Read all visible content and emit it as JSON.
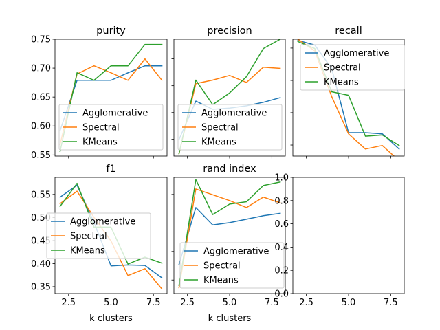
{
  "chart_data": [
    {
      "type": "line",
      "title": "purity",
      "xlabel": "",
      "x": [
        2,
        3,
        4,
        5,
        6,
        7,
        8
      ],
      "xlim": [
        1.7,
        8.3
      ],
      "ylim": [
        0.548,
        0.75
      ],
      "xticks": [
        2.5,
        5.0,
        7.5
      ],
      "xtick_labels": [
        "",
        "",
        ""
      ],
      "yticks": [
        0.55,
        0.6,
        0.65,
        0.7,
        0.75
      ],
      "ytick_labels": [
        "0.55",
        "0.60",
        "0.65",
        "0.70",
        "0.75"
      ],
      "legend": "lower-left",
      "series": [
        {
          "name": "Agglomerative",
          "color": "#1f77b4",
          "values": [
            0.592,
            0.679,
            0.679,
            0.679,
            0.692,
            0.704,
            0.704
          ]
        },
        {
          "name": "Spectral",
          "color": "#ff7f0e",
          "values": [
            0.568,
            0.69,
            0.704,
            0.692,
            0.679,
            0.716,
            0.679
          ]
        },
        {
          "name": "KMeans",
          "color": "#2ca02c",
          "values": [
            0.556,
            0.692,
            0.679,
            0.704,
            0.704,
            0.741,
            0.741
          ]
        }
      ]
    },
    {
      "type": "line",
      "title": "precision",
      "xlabel": "",
      "x": [
        2,
        3,
        4,
        5,
        6,
        7,
        8
      ],
      "xlim": [
        1.7,
        8.3
      ],
      "ylim": [
        0.0,
        1.0
      ],
      "xticks": [
        2.5,
        5.0,
        7.5
      ],
      "xtick_labels": [
        "",
        "",
        ""
      ],
      "yticks": [
        0.143,
        0.372,
        0.602,
        0.832
      ],
      "ytick_labels": [
        "",
        "",
        "",
        ""
      ],
      "legend": "lower-left",
      "series": [
        {
          "name": "Agglomerative",
          "color": "#1f77b4",
          "values": [
            0.14,
            0.47,
            0.4,
            0.41,
            0.43,
            0.46,
            0.5
          ]
        },
        {
          "name": "Spectral",
          "color": "#ff7f0e",
          "values": [
            0.02,
            0.62,
            0.65,
            0.69,
            0.63,
            0.76,
            0.75
          ]
        },
        {
          "name": "KMeans",
          "color": "#2ca02c",
          "values": [
            0.02,
            0.65,
            0.44,
            0.54,
            0.68,
            0.92,
            1.0
          ]
        }
      ]
    },
    {
      "type": "line",
      "title": "recall",
      "xlabel": "",
      "x": [
        2,
        3,
        4,
        5,
        6,
        7,
        8
      ],
      "xlim": [
        1.7,
        8.3
      ],
      "ylim": [
        0.0,
        1.0
      ],
      "xticks": [
        2.5,
        5.0,
        7.5
      ],
      "xtick_labels": [
        "",
        "",
        ""
      ],
      "yticks": [
        0.094,
        0.371,
        0.647,
        0.924
      ],
      "ytick_labels": [
        "",
        "",
        "",
        ""
      ],
      "legend": "upper-right",
      "series": [
        {
          "name": "Agglomerative",
          "color": "#1f77b4",
          "values": [
            0.99,
            0.95,
            0.75,
            0.2,
            0.2,
            0.19,
            0.06
          ]
        },
        {
          "name": "Spectral",
          "color": "#ff7f0e",
          "values": [
            1.0,
            0.9,
            0.51,
            0.19,
            0.06,
            0.09,
            -0.04
          ]
        },
        {
          "name": "KMeans",
          "color": "#2ca02c",
          "values": [
            0.98,
            0.92,
            0.55,
            0.52,
            0.17,
            0.18,
            0.09
          ]
        }
      ]
    },
    {
      "type": "line",
      "title": "f1",
      "xlabel": "k clusters",
      "x": [
        2,
        3,
        4,
        5,
        6,
        7,
        8
      ],
      "xlim": [
        1.7,
        8.3
      ],
      "ylim": [
        0.335,
        0.587
      ],
      "xticks": [
        2.5,
        5.0,
        7.5
      ],
      "xtick_labels": [
        "2.5",
        "5.0",
        "7.5"
      ],
      "yticks": [
        0.35,
        0.4,
        0.45,
        0.5,
        0.55
      ],
      "ytick_labels": [
        "0.35",
        "0.40",
        "0.45",
        "0.50",
        "0.55"
      ],
      "legend": "center-left",
      "series": [
        {
          "name": "Agglomerative",
          "color": "#1f77b4",
          "values": [
            0.544,
            0.57,
            0.489,
            0.395,
            0.397,
            0.396,
            0.369
          ]
        },
        {
          "name": "Spectral",
          "color": "#ff7f0e",
          "values": [
            0.53,
            0.557,
            0.5,
            0.449,
            0.374,
            0.389,
            0.345
          ]
        },
        {
          "name": "KMeans",
          "color": "#2ca02c",
          "values": [
            0.524,
            0.574,
            0.479,
            0.479,
            0.399,
            0.414,
            0.401
          ]
        }
      ]
    },
    {
      "type": "line",
      "title": "rand index",
      "xlabel": "k clusters",
      "x": [
        2,
        3,
        4,
        5,
        6,
        7,
        8
      ],
      "xlim": [
        1.7,
        8.3
      ],
      "ylim": [
        0.0,
        1.0
      ],
      "xticks": [
        2.5,
        5.0,
        7.5
      ],
      "xtick_labels": [
        "2.5",
        "5.0",
        "7.5"
      ],
      "yticks": [
        0.117,
        0.362,
        0.607,
        0.853
      ],
      "ytick_labels": [
        "",
        "",
        "",
        ""
      ],
      "legend": "lower-left",
      "series": [
        {
          "name": "Agglomerative",
          "color": "#1f77b4",
          "values": [
            0.25,
            0.74,
            0.59,
            0.61,
            0.64,
            0.67,
            0.69
          ]
        },
        {
          "name": "Spectral",
          "color": "#ff7f0e",
          "values": [
            0.05,
            0.9,
            0.85,
            0.8,
            0.74,
            0.83,
            0.78
          ]
        },
        {
          "name": "KMeans",
          "color": "#2ca02c",
          "values": [
            0.07,
            0.98,
            0.68,
            0.77,
            0.79,
            0.93,
            0.96
          ]
        }
      ]
    },
    {
      "type": "line",
      "title": "",
      "xlabel": "",
      "x": [],
      "xlim": [
        1.7,
        8.3
      ],
      "ylim": [
        0.0,
        1.0
      ],
      "xticks": [
        2.5,
        5.0,
        7.5
      ],
      "xtick_labels": [
        "2.5",
        "5.0",
        "7.5"
      ],
      "yticks": [
        0.0,
        0.2,
        0.4,
        0.6,
        0.8,
        1.0
      ],
      "ytick_labels": [
        "0.0",
        "0.2",
        "0.4",
        "0.6",
        "0.8",
        "1.0"
      ],
      "legend": "none",
      "series": []
    }
  ]
}
